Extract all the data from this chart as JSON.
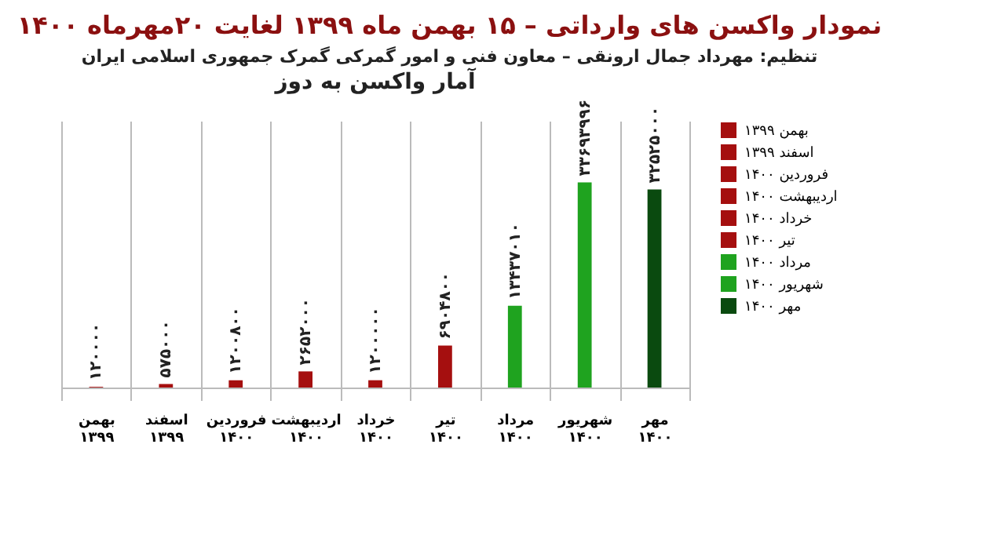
{
  "chart_data": {
    "type": "bar",
    "title": "نمودار واکسن های وارداتی – ۱۵ بهمن ماه ۱۳۹۹ لغایت ۲۰مهرماه ۱۴۰۰",
    "subtitle": "تنظیم: مهرداد جمال ارونقی – معاون فنی و امور گمرکی گمرک جمهوری اسلامی ایران",
    "annotations": [
      "آمار واکسن به دوز"
    ],
    "categories": [
      "بهمن ۱۳۹۹",
      "اسفند ۱۳۹۹",
      "فروردین ۱۴۰۰",
      "اردیبهشت ۱۴۰۰",
      "خرداد ۱۴۰۰",
      "تیر ۱۴۰۰",
      "مرداد ۱۴۰۰",
      "شهریور ۱۴۰۰",
      "مهر ۱۴۰۰"
    ],
    "stacked": true,
    "series": [
      {
        "name": "بهمن ۱۳۹۹",
        "color": "#a50f0f",
        "values": [
          120000,
          null,
          null,
          null,
          null,
          null,
          null,
          null,
          null
        ],
        "value_labels": [
          "۱۲۰۰۰۰",
          null,
          null,
          null,
          null,
          null,
          null,
          null,
          null
        ]
      },
      {
        "name": "اسفند ۱۳۹۹",
        "color": "#a50f0f",
        "values": [
          null,
          575000,
          null,
          null,
          null,
          null,
          null,
          null,
          null
        ],
        "value_labels": [
          null,
          "۵۷۵۰۰۰",
          null,
          null,
          null,
          null,
          null,
          null,
          null
        ]
      },
      {
        "name": "فروردین ۱۴۰۰",
        "color": "#a50f0f",
        "values": [
          null,
          null,
          1200800,
          null,
          null,
          null,
          null,
          null,
          null
        ],
        "value_labels": [
          null,
          null,
          "۱۲۰۰۸۰۰",
          null,
          null,
          null,
          null,
          null,
          null
        ]
      },
      {
        "name": "اردیبهشت ۱۴۰۰",
        "color": "#a50f0f",
        "values": [
          null,
          null,
          null,
          2652000,
          null,
          null,
          null,
          null,
          null
        ],
        "value_labels": [
          null,
          null,
          null,
          "۲۶۵۲۰۰۰",
          null,
          null,
          null,
          null,
          null
        ]
      },
      {
        "name": "خرداد ۱۴۰۰",
        "color": "#a50f0f",
        "values": [
          null,
          null,
          null,
          null,
          1200000,
          null,
          null,
          null,
          null
        ],
        "value_labels": [
          null,
          null,
          null,
          null,
          "۱۲۰۰۰۰۰",
          null,
          null,
          null,
          null
        ]
      },
      {
        "name": "تیر ۱۴۰۰",
        "color": "#a50f0f",
        "values": [
          null,
          null,
          null,
          null,
          null,
          6904800,
          null,
          null,
          null
        ],
        "value_labels": [
          null,
          null,
          null,
          null,
          null,
          "۶۹۰۴۸۰۰",
          null,
          null,
          null
        ]
      },
      {
        "name": "مرداد ۱۴۰۰",
        "color": "#1fa31f",
        "values": [
          null,
          null,
          null,
          null,
          null,
          null,
          13437010,
          null,
          null
        ],
        "value_labels": [
          null,
          null,
          null,
          null,
          null,
          null,
          "۱۳۴۳۷۰۱۰",
          null,
          null
        ]
      },
      {
        "name": "شهریور ۱۴۰۰",
        "color": "#1fa31f",
        "values": [
          null,
          null,
          null,
          null,
          null,
          null,
          null,
          33693996,
          null
        ],
        "value_labels": [
          null,
          null,
          null,
          null,
          null,
          null,
          null,
          "۳۳۶۹۳۹۹۶",
          null
        ]
      },
      {
        "name": "مهر ۱۴۰۰",
        "color": "#0a4a0f",
        "values": [
          null,
          null,
          null,
          null,
          null,
          null,
          null,
          null,
          32525000
        ],
        "value_labels": [
          null,
          null,
          null,
          null,
          null,
          null,
          null,
          null,
          "۳۲۵۲۵۰۰۰"
        ]
      }
    ],
    "grid": "x",
    "legend": "right"
  }
}
